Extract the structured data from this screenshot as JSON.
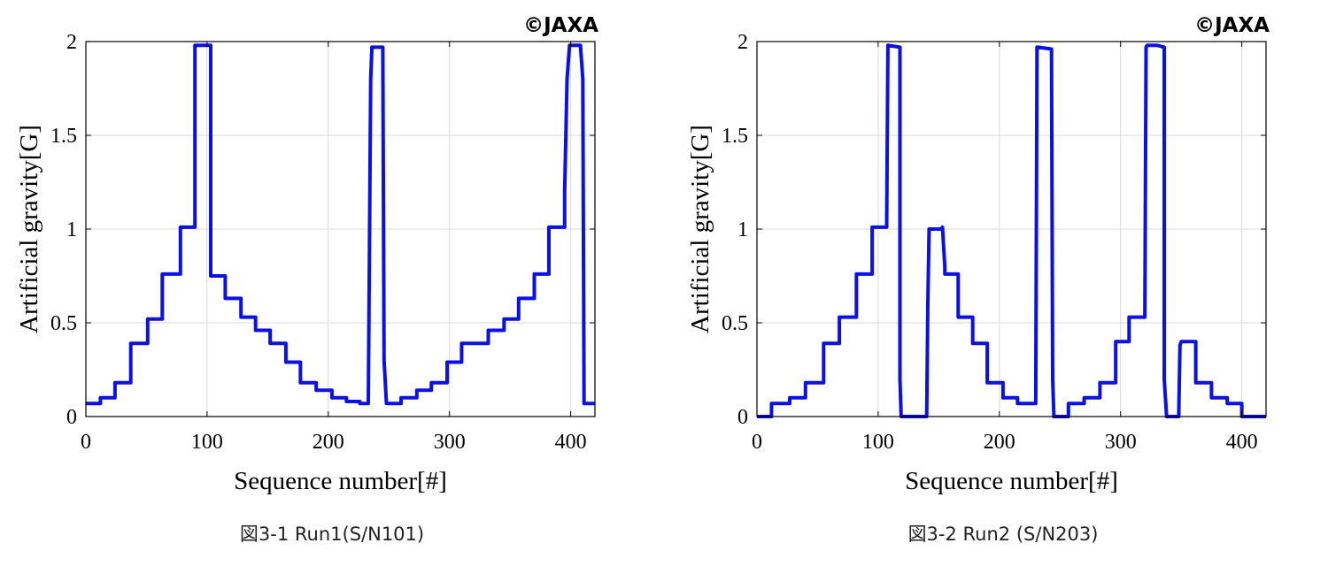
{
  "figures": [
    {
      "copyright": "©JAXA",
      "caption": "図3-1 Run1(S/N101)"
    },
    {
      "copyright": "©JAXA",
      "caption": "図3-2 Run2 (S/N203)"
    }
  ],
  "colors": {
    "line": "#0a10e6",
    "grid": "#d9d9d9",
    "axis": "#000000"
  },
  "chart_data": [
    {
      "type": "line",
      "title": "",
      "xlabel": "Sequence number[#]",
      "ylabel": "Artificial gravity[G]",
      "xlim": [
        0,
        420
      ],
      "ylim": [
        0,
        2
      ],
      "xticks": [
        0,
        100,
        200,
        300,
        400
      ],
      "yticks": [
        0,
        0.5,
        1,
        1.5,
        2
      ],
      "ytick_labels": [
        "0",
        "0.5",
        "1",
        "1.5",
        "2"
      ],
      "grid": true,
      "series": [
        {
          "x": [
            0,
            12,
            12,
            24,
            24,
            37,
            37,
            51,
            51,
            63,
            63,
            78,
            78,
            90,
            90,
            103,
            103,
            115,
            115,
            128,
            128,
            140,
            140,
            152,
            152,
            165,
            165,
            177,
            177,
            190,
            190,
            203,
            203,
            215,
            215,
            226,
            226,
            233,
            235,
            236,
            237,
            245,
            246,
            248,
            248,
            260,
            260,
            273,
            273,
            285,
            285,
            298,
            298,
            310,
            310,
            332,
            332,
            345,
            345,
            357,
            357,
            370,
            370,
            382,
            382,
            395,
            395,
            397,
            399,
            400,
            408,
            410,
            411,
            420
          ],
          "y": [
            0.07,
            0.07,
            0.1,
            0.1,
            0.18,
            0.18,
            0.39,
            0.39,
            0.52,
            0.52,
            0.76,
            0.76,
            1.01,
            1.01,
            1.98,
            1.98,
            0.75,
            0.75,
            0.63,
            0.63,
            0.53,
            0.53,
            0.46,
            0.46,
            0.39,
            0.39,
            0.29,
            0.29,
            0.18,
            0.18,
            0.14,
            0.14,
            0.1,
            0.1,
            0.08,
            0.08,
            0.07,
            0.07,
            1.8,
            1.97,
            1.97,
            1.97,
            0.3,
            0.07,
            0.07,
            0.07,
            0.1,
            0.1,
            0.14,
            0.14,
            0.18,
            0.18,
            0.29,
            0.29,
            0.39,
            0.39,
            0.46,
            0.46,
            0.52,
            0.52,
            0.63,
            0.63,
            0.76,
            0.76,
            1.01,
            1.01,
            1.2,
            1.8,
            1.98,
            1.98,
            1.98,
            1.8,
            0.07,
            0.07
          ]
        }
      ]
    },
    {
      "type": "line",
      "title": "",
      "xlabel": "Sequence number[#]",
      "ylabel": "Artificial gravity[G]",
      "xlim": [
        0,
        420
      ],
      "ylim": [
        0,
        2
      ],
      "xticks": [
        0,
        100,
        200,
        300,
        400
      ],
      "yticks": [
        0,
        0.5,
        1,
        1.5,
        2
      ],
      "ytick_labels": [
        "0",
        "0.5",
        "1",
        "1.5",
        "2"
      ],
      "grid": true,
      "series": [
        {
          "x": [
            0,
            12,
            12,
            27,
            27,
            40,
            40,
            55,
            55,
            68,
            68,
            82,
            82,
            95,
            95,
            107,
            108,
            118,
            118,
            119,
            140,
            141,
            142,
            152,
            153,
            155,
            155,
            166,
            166,
            178,
            178,
            190,
            190,
            203,
            203,
            215,
            215,
            230,
            231,
            232,
            243,
            244,
            245,
            257,
            257,
            270,
            270,
            283,
            283,
            296,
            296,
            307,
            307,
            320,
            321,
            322,
            330,
            336,
            336,
            338,
            348,
            349,
            350,
            362,
            362,
            375,
            375,
            388,
            388,
            400,
            400,
            420
          ],
          "y": [
            0,
            0,
            0.07,
            0.07,
            0.1,
            0.1,
            0.18,
            0.18,
            0.39,
            0.39,
            0.53,
            0.53,
            0.76,
            0.76,
            1.01,
            1.01,
            1.98,
            1.97,
            0.2,
            0,
            0,
            0.6,
            1.0,
            1.0,
            1.01,
            0.8,
            0.76,
            0.76,
            0.53,
            0.53,
            0.39,
            0.39,
            0.18,
            0.18,
            0.1,
            0.1,
            0.07,
            0.07,
            1.97,
            1.97,
            1.96,
            0.2,
            0,
            0,
            0.07,
            0.07,
            0.1,
            0.1,
            0.18,
            0.18,
            0.4,
            0.4,
            0.53,
            0.53,
            1.97,
            1.98,
            1.98,
            1.97,
            0.2,
            0,
            0,
            0.38,
            0.4,
            0.4,
            0.18,
            0.18,
            0.1,
            0.1,
            0.07,
            0.07,
            0,
            0
          ]
        }
      ]
    }
  ]
}
